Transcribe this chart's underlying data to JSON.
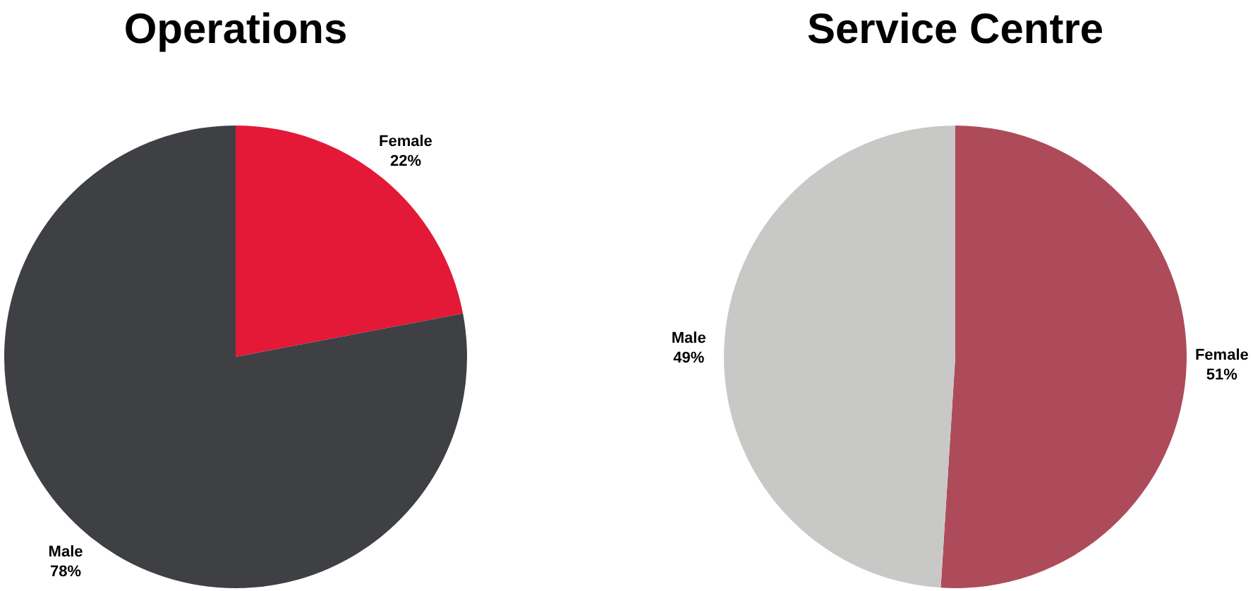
{
  "chart_data": [
    {
      "type": "pie",
      "title": "Operations",
      "categories": [
        "Female",
        "Male"
      ],
      "values": [
        22,
        78
      ],
      "value_labels": [
        "22%",
        "78%"
      ],
      "colors": [
        "#e31937",
        "#3f4044"
      ],
      "legend": false
    },
    {
      "type": "pie",
      "title": "Service Centre",
      "categories": [
        "Female",
        "Male"
      ],
      "values": [
        51,
        49
      ],
      "value_labels": [
        "51%",
        "49%"
      ],
      "colors": [
        "#ae4b5a",
        "#c8c9c7"
      ],
      "legend": false
    }
  ]
}
